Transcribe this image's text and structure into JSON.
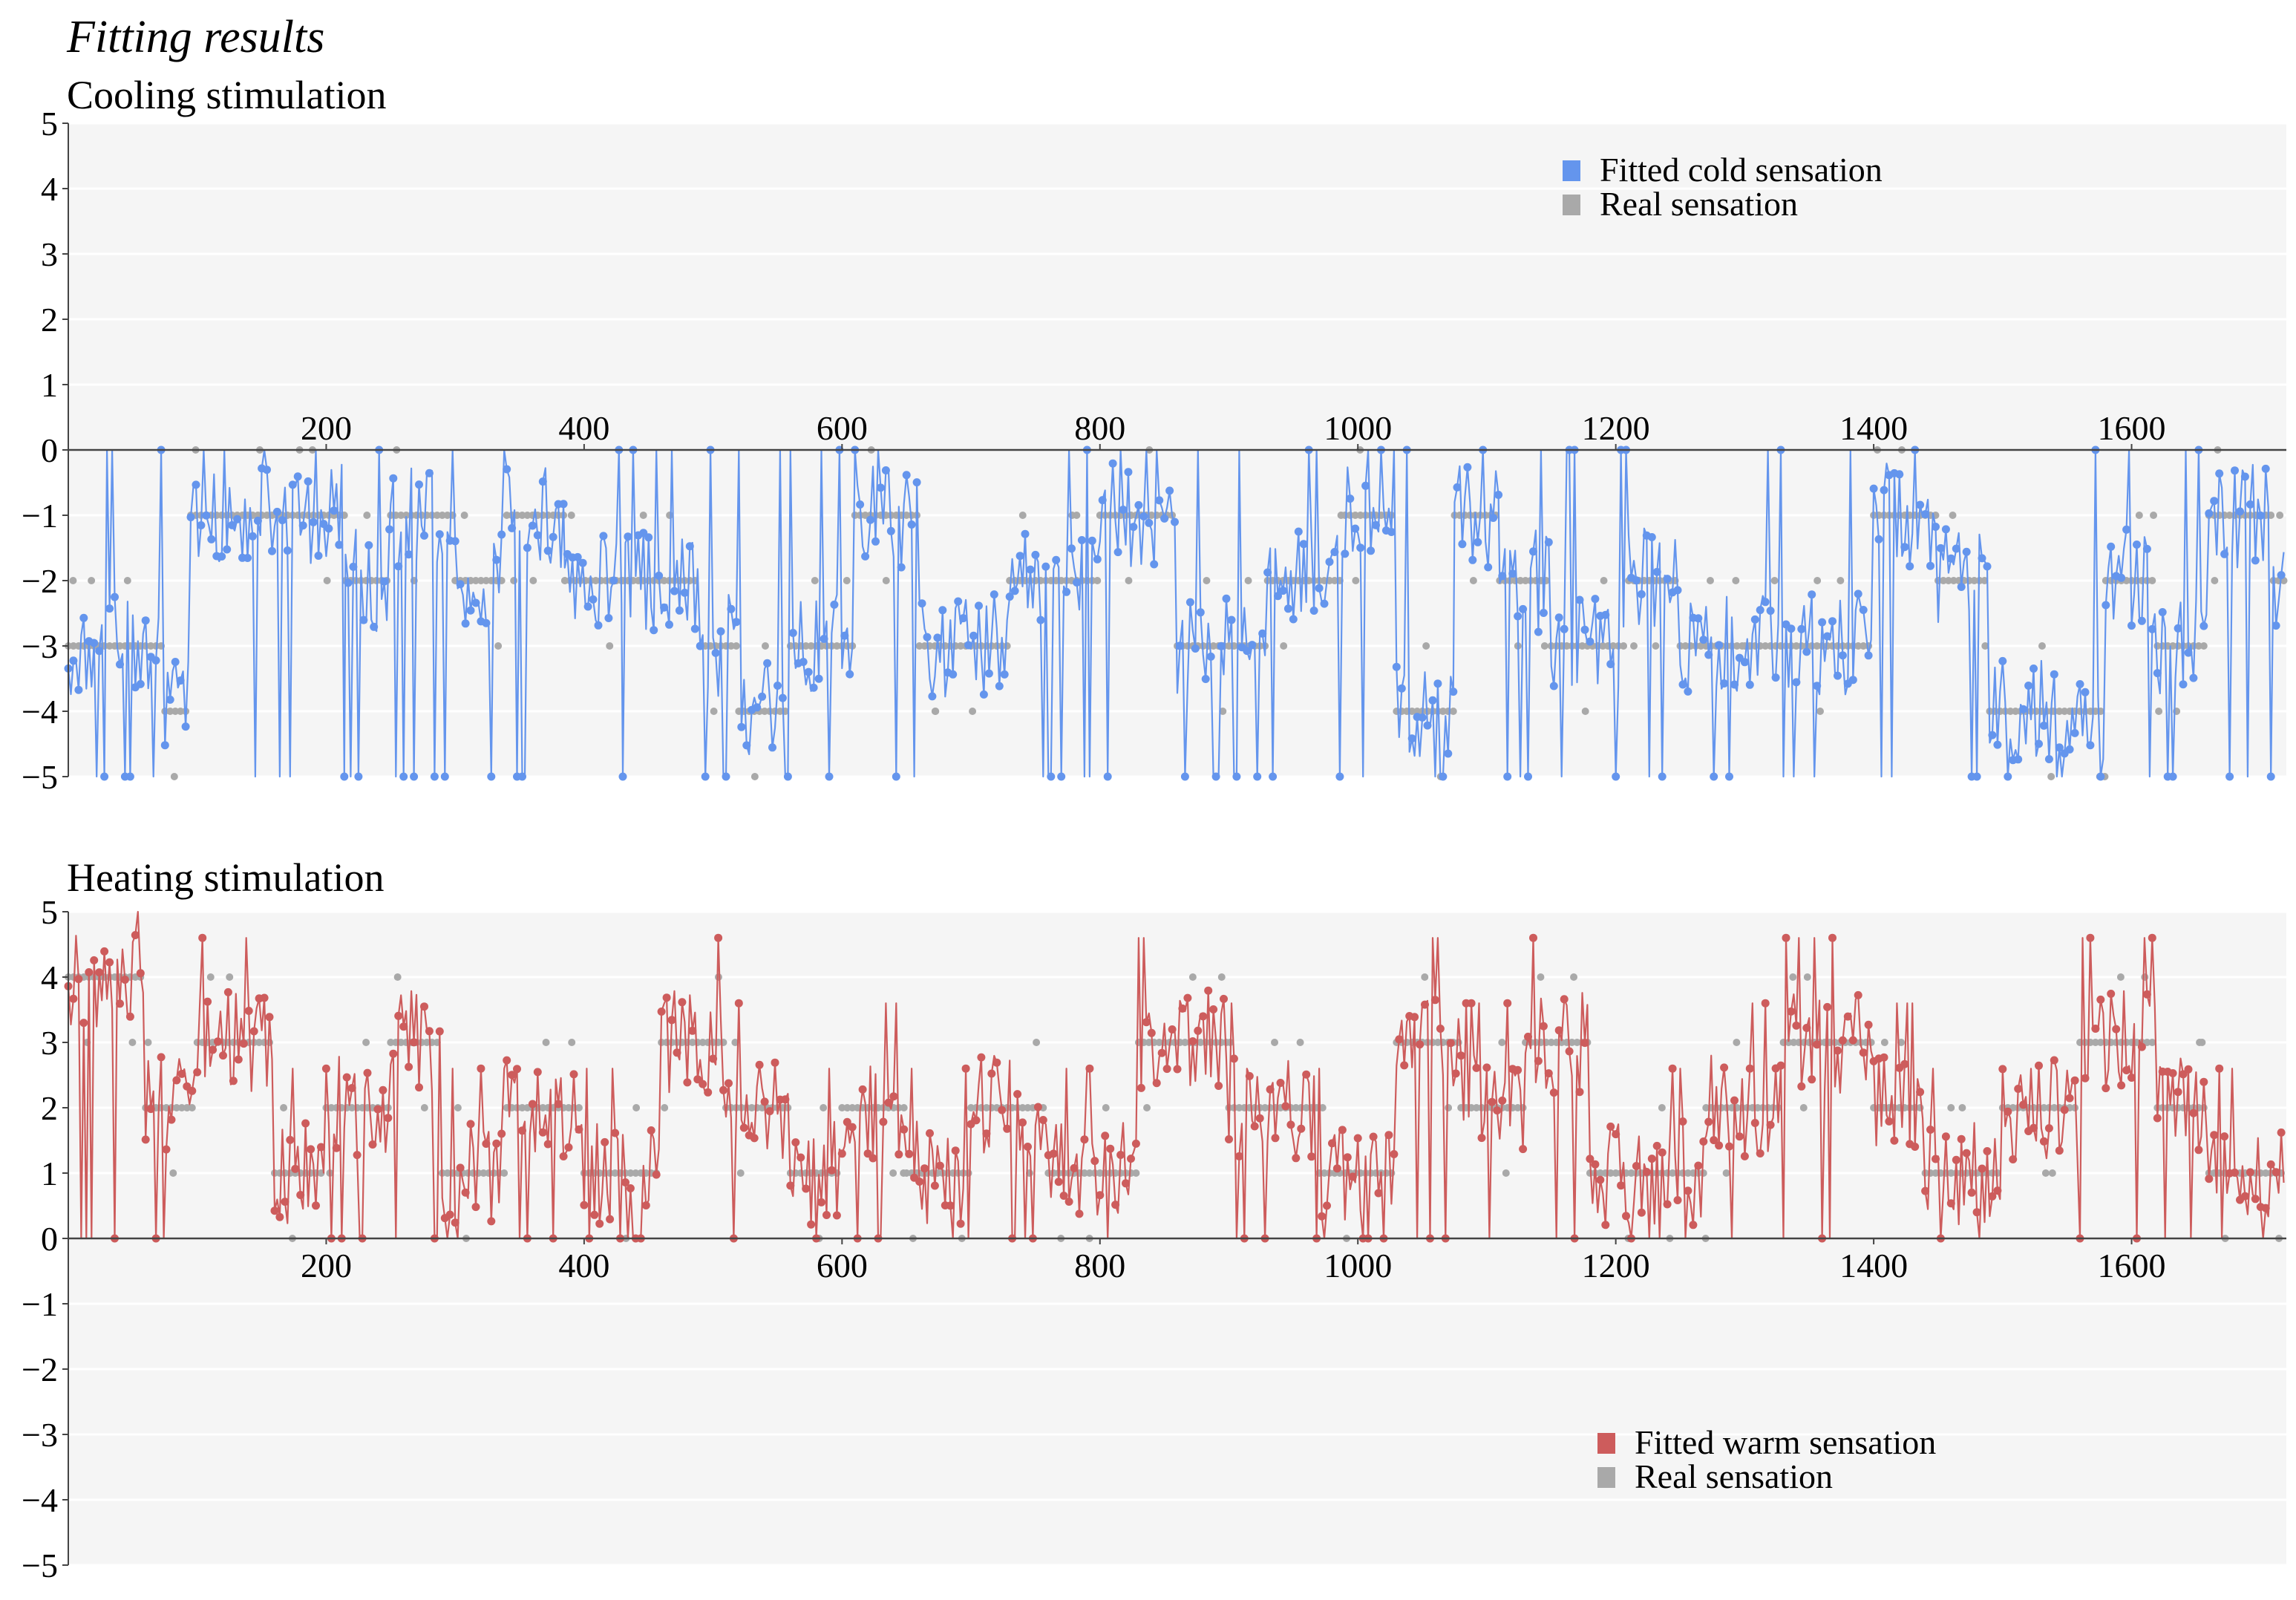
{
  "figure": {
    "title": "Fitting results"
  },
  "colors": {
    "cold": "#6495ED",
    "warm": "#CD5C5C",
    "real": "#A9A9A9",
    "plot_bg": "#F5F5F5",
    "grid": "#FFFFFF",
    "axis": "#444444"
  },
  "chart_data": [
    {
      "type": "line",
      "title": "Cooling stimulation",
      "xlabel": "",
      "ylabel": "",
      "xlim": [
        0,
        1720
      ],
      "ylim": [
        -5,
        5
      ],
      "x_ticks": [
        200,
        400,
        600,
        800,
        1000,
        1200,
        1400,
        1600
      ],
      "y_ticks": [
        5,
        4,
        3,
        2,
        1,
        0,
        -1,
        -2,
        -3,
        -4,
        -5
      ],
      "x_axis_at": 0,
      "legend_position": "top-right",
      "series": [
        {
          "name": "Fitted cold sensation",
          "color": "#6495ED",
          "style": "line+markers"
        },
        {
          "name": "Real sensation",
          "color": "#A9A9A9",
          "style": "markers"
        }
      ],
      "segments": [
        {
          "start": 0,
          "end": 75,
          "real": -3
        },
        {
          "start": 75,
          "end": 95,
          "real": -4
        },
        {
          "start": 95,
          "end": 150,
          "real": -1
        },
        {
          "start": 150,
          "end": 215,
          "real": -1
        },
        {
          "start": 215,
          "end": 250,
          "real": -2
        },
        {
          "start": 250,
          "end": 300,
          "real": -1
        },
        {
          "start": 300,
          "end": 340,
          "real": -2
        },
        {
          "start": 340,
          "end": 385,
          "real": -1
        },
        {
          "start": 385,
          "end": 430,
          "real": -2
        },
        {
          "start": 430,
          "end": 490,
          "real": -2
        },
        {
          "start": 490,
          "end": 520,
          "real": -3
        },
        {
          "start": 520,
          "end": 560,
          "real": -4
        },
        {
          "start": 560,
          "end": 610,
          "real": -3
        },
        {
          "start": 610,
          "end": 660,
          "real": -1
        },
        {
          "start": 660,
          "end": 730,
          "real": -3
        },
        {
          "start": 730,
          "end": 800,
          "real": -2
        },
        {
          "start": 800,
          "end": 860,
          "real": -1
        },
        {
          "start": 860,
          "end": 930,
          "real": -3
        },
        {
          "start": 930,
          "end": 990,
          "real": -2
        },
        {
          "start": 990,
          "end": 1030,
          "real": -1
        },
        {
          "start": 1030,
          "end": 1075,
          "real": -4
        },
        {
          "start": 1075,
          "end": 1110,
          "real": -1
        },
        {
          "start": 1110,
          "end": 1150,
          "real": -2
        },
        {
          "start": 1150,
          "end": 1210,
          "real": -3
        },
        {
          "start": 1210,
          "end": 1250,
          "real": -2
        },
        {
          "start": 1250,
          "end": 1300,
          "real": -3
        },
        {
          "start": 1300,
          "end": 1400,
          "real": -3
        },
        {
          "start": 1400,
          "end": 1450,
          "real": -1
        },
        {
          "start": 1450,
          "end": 1490,
          "real": -2
        },
        {
          "start": 1490,
          "end": 1540,
          "real": -4
        },
        {
          "start": 1540,
          "end": 1580,
          "real": -4
        },
        {
          "start": 1580,
          "end": 1620,
          "real": -2
        },
        {
          "start": 1620,
          "end": 1660,
          "real": -3
        },
        {
          "start": 1660,
          "end": 1710,
          "real": -1
        },
        {
          "start": 1710,
          "end": 1720,
          "real": -2
        }
      ]
    },
    {
      "type": "line",
      "title": "Heating stimulation",
      "xlabel": "",
      "ylabel": "",
      "xlim": [
        0,
        1720
      ],
      "ylim": [
        -5,
        5
      ],
      "x_ticks": [
        200,
        400,
        600,
        800,
        1000,
        1200,
        1400,
        1600
      ],
      "y_ticks": [
        5,
        4,
        3,
        2,
        1,
        0,
        -1,
        -2,
        -3,
        -4,
        -5
      ],
      "x_axis_at": 0,
      "legend_position": "bottom-right",
      "series": [
        {
          "name": "Fitted warm sensation",
          "color": "#CD5C5C",
          "style": "line+markers"
        },
        {
          "name": "Real sensation",
          "color": "#A9A9A9",
          "style": "markers"
        }
      ],
      "segments": [
        {
          "start": 0,
          "end": 60,
          "real": 4
        },
        {
          "start": 60,
          "end": 100,
          "real": 2
        },
        {
          "start": 100,
          "end": 160,
          "real": 3
        },
        {
          "start": 160,
          "end": 200,
          "real": 1
        },
        {
          "start": 200,
          "end": 250,
          "real": 2
        },
        {
          "start": 250,
          "end": 290,
          "real": 3
        },
        {
          "start": 290,
          "end": 340,
          "real": 1
        },
        {
          "start": 340,
          "end": 400,
          "real": 2
        },
        {
          "start": 400,
          "end": 460,
          "real": 1
        },
        {
          "start": 460,
          "end": 510,
          "real": 3
        },
        {
          "start": 510,
          "end": 560,
          "real": 2
        },
        {
          "start": 560,
          "end": 600,
          "real": 1
        },
        {
          "start": 600,
          "end": 650,
          "real": 2
        },
        {
          "start": 650,
          "end": 700,
          "real": 1
        },
        {
          "start": 700,
          "end": 760,
          "real": 2
        },
        {
          "start": 760,
          "end": 830,
          "real": 1
        },
        {
          "start": 830,
          "end": 900,
          "real": 3
        },
        {
          "start": 900,
          "end": 970,
          "real": 2
        },
        {
          "start": 970,
          "end": 1030,
          "real": 1
        },
        {
          "start": 1030,
          "end": 1080,
          "real": 3
        },
        {
          "start": 1080,
          "end": 1130,
          "real": 2
        },
        {
          "start": 1130,
          "end": 1180,
          "real": 3
        },
        {
          "start": 1180,
          "end": 1270,
          "real": 1
        },
        {
          "start": 1270,
          "end": 1330,
          "real": 2
        },
        {
          "start": 1330,
          "end": 1400,
          "real": 3
        },
        {
          "start": 1400,
          "end": 1440,
          "real": 2
        },
        {
          "start": 1440,
          "end": 1500,
          "real": 1
        },
        {
          "start": 1500,
          "end": 1560,
          "real": 2
        },
        {
          "start": 1560,
          "end": 1620,
          "real": 3
        },
        {
          "start": 1620,
          "end": 1660,
          "real": 2
        },
        {
          "start": 1660,
          "end": 1720,
          "real": 1
        }
      ]
    }
  ]
}
